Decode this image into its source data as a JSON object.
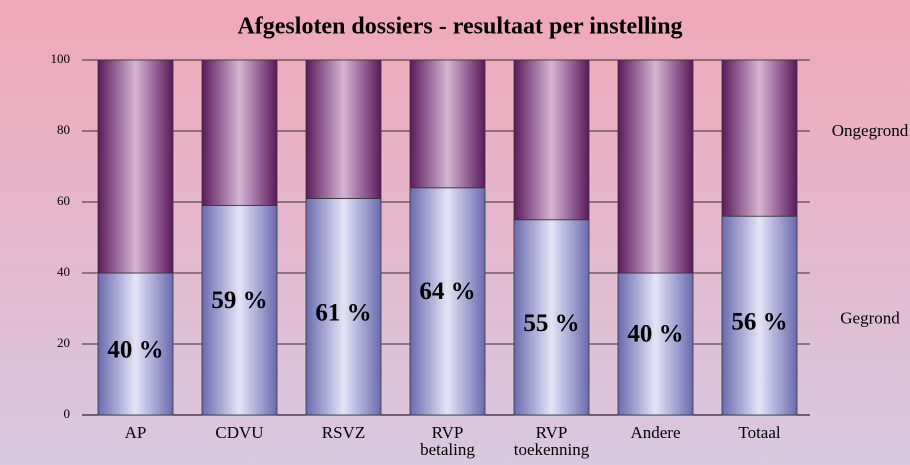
{
  "chart_data": {
    "type": "bar",
    "stacked": true,
    "title": "Afgesloten dossiers - resultaat per instelling",
    "categories": [
      "AP",
      "CDVU",
      "RSVZ",
      "RVP betaling",
      "RVP toekenning",
      "Andere",
      "Totaal"
    ],
    "series": [
      {
        "name": "Gegrond",
        "color": "#8a8ac8",
        "values": [
          40,
          59,
          61,
          64,
          55,
          40,
          56
        ],
        "value_labels": [
          "40 %",
          "59 %",
          "61 %",
          "64 %",
          "55 %",
          "40 %",
          "56 %"
        ]
      },
      {
        "name": "Ongegrond",
        "color": "#8a3a80",
        "values": [
          60,
          41,
          39,
          36,
          45,
          60,
          44
        ]
      }
    ],
    "ylim": [
      0,
      100
    ],
    "yticks": [
      0,
      20,
      40,
      60,
      80,
      100
    ],
    "grid": true
  }
}
